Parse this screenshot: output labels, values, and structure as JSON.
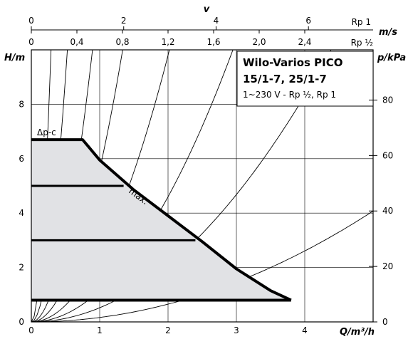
{
  "chart_data": {
    "type": "line",
    "title": "Wilo-Varios PICO",
    "subtitle_lines": [
      "15/1-7, 25/1-7",
      "1~230 V - Rp ½, Rp 1"
    ],
    "xlabel": "Q/m³/h",
    "ylabel": "H/m",
    "y2label": "p/kPa",
    "xlim": [
      0,
      5
    ],
    "ylim": [
      0,
      10
    ],
    "y2lim": [
      0,
      98.1
    ],
    "grid": true,
    "x_ticks": [
      "0",
      "1",
      "2",
      "3",
      "4"
    ],
    "y_ticks": [
      "0",
      "2",
      "4",
      "6",
      "8"
    ],
    "y2_ticks": [
      "0",
      "20",
      "40",
      "60",
      "80"
    ],
    "top_axes": [
      {
        "label": "v",
        "unit": "",
        "ticks": [
          "0",
          "2",
          "4",
          "6"
        ],
        "values": [
          0,
          2,
          4,
          6
        ],
        "end_label": "Rp 1"
      },
      {
        "label": "",
        "unit": "m/s",
        "ticks": [
          "0",
          "0,4",
          "0,8",
          "1,2",
          "1,6",
          "2,0",
          "2,4"
        ],
        "values": [
          0,
          0.4,
          0.8,
          1.2,
          1.6,
          2.0,
          2.4
        ],
        "end_label": "Rp ½"
      }
    ],
    "annotations": [
      {
        "text": "Δp-c"
      },
      {
        "text": "max."
      }
    ],
    "series": [
      {
        "name": "max.",
        "role": "envelope",
        "x": [
          0,
          0.75,
          1.0,
          1.5,
          2.0,
          2.5,
          3.0,
          3.5,
          3.8
        ],
        "y": [
          6.7,
          6.7,
          5.95,
          4.85,
          3.9,
          2.95,
          1.95,
          1.15,
          0.8
        ]
      },
      {
        "name": "",
        "role": "setting",
        "x": [
          0,
          1.35
        ],
        "y": [
          5.0,
          5.0
        ]
      },
      {
        "name": "",
        "role": "setting",
        "x": [
          0,
          2.4
        ],
        "y": [
          3.0,
          3.0
        ]
      },
      {
        "name": "",
        "role": "setting",
        "x": [
          0,
          3.8
        ],
        "y": [
          0.8,
          0.8
        ]
      }
    ],
    "system_curves": [
      {
        "k": 120
      },
      {
        "k": 36
      },
      {
        "k": 12.5
      },
      {
        "k": 5.6
      },
      {
        "k": 2.45
      },
      {
        "k": 1.15
      },
      {
        "k": 0.52
      },
      {
        "k": 0.163
      }
    ]
  }
}
